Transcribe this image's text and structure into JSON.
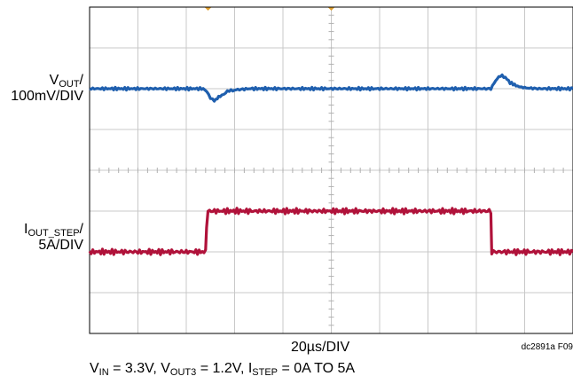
{
  "chart_data": {
    "type": "line",
    "x_label": "20µs/DIV",
    "figure_id": "dc2891a F09",
    "grid": true,
    "grid_divisions": {
      "x": 10,
      "y": 8
    },
    "series": [
      {
        "name": "VOUT",
        "label_main": "V",
        "label_sub": "OUT",
        "label_scale": "/",
        "label_line2": "100mV/DIV",
        "color": "#1f5fae",
        "x": [
          0,
          2.35,
          2.42,
          2.5,
          2.58,
          2.7,
          2.85,
          3.0,
          3.3,
          4.0,
          6.0,
          8.3,
          8.4,
          8.5,
          8.6,
          8.7,
          8.85,
          9.0,
          9.3,
          10.0
        ],
        "y": [
          0,
          0,
          -0.15,
          -0.45,
          -0.6,
          -0.35,
          -0.15,
          -0.06,
          0,
          0,
          0,
          0,
          0.4,
          0.65,
          0.55,
          0.3,
          0.12,
          0.04,
          0,
          0
        ]
      },
      {
        "name": "IOUT_STEP",
        "label_main": "I",
        "label_sub": "OUT_STEP",
        "label_scale": "/",
        "label_line2": "5A/DIV",
        "color": "#b0123a",
        "x": [
          0,
          2.4,
          2.42,
          2.45,
          8.3,
          8.32,
          10.0
        ],
        "y": [
          0,
          0,
          0.6,
          1.0,
          1.0,
          0,
          0
        ]
      }
    ],
    "caption": {
      "v": "V",
      "v_sub": "IN",
      "v_val": " = 3.3V,  V",
      "vo_sub": "OUT3",
      "vo_val": " = 1.2V, I",
      "i_sub": "STEP",
      "i_val": " = 0A TO 5A"
    }
  }
}
